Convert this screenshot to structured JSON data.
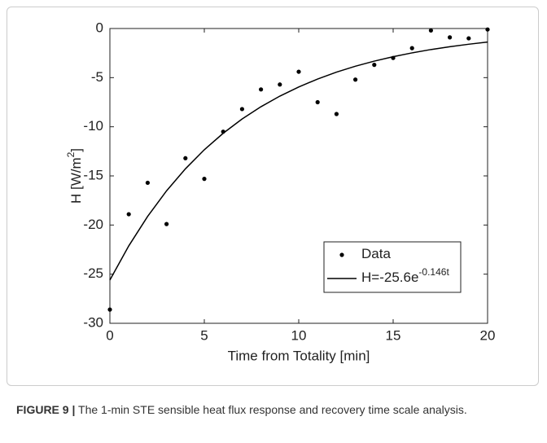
{
  "chart_data": {
    "type": "scatter",
    "xlabel": "Time from Totality [min]",
    "ylabel": {
      "text": "H [W/m",
      "sup": "2",
      "end": "]"
    },
    "xlim": [
      0,
      20
    ],
    "xticks": [
      0,
      5,
      10,
      15,
      20
    ],
    "ylim": [
      -30,
      0
    ],
    "yticks": [
      -30,
      -25,
      -20,
      -15,
      -10,
      -5,
      0
    ],
    "legend": "lower right",
    "series": [
      {
        "name": "Data",
        "kind": "points",
        "color": "#000000",
        "x": [
          0,
          1,
          2,
          3,
          4,
          5,
          6,
          7,
          8,
          9,
          10,
          11,
          12,
          13,
          14,
          15,
          16,
          17,
          18,
          19,
          20
        ],
        "values": [
          -28.6,
          -18.9,
          -15.7,
          -19.9,
          -13.2,
          -15.3,
          -10.5,
          -8.2,
          -6.2,
          -5.7,
          -4.4,
          -7.5,
          -8.7,
          -5.2,
          -3.7,
          -3.0,
          -2.0,
          -0.2,
          -0.9,
          -1.0,
          -0.1
        ]
      },
      {
        "name": "H=-25.6e",
        "name_sup": "-0.146t",
        "kind": "line",
        "color": "#000000",
        "x": [
          0,
          1,
          2,
          3,
          4,
          5,
          6,
          7,
          8,
          9,
          10,
          11,
          12,
          13,
          14,
          15,
          16,
          17,
          18,
          19,
          20
        ],
        "values": [
          -25.6,
          -22.12,
          -19.12,
          -16.52,
          -14.28,
          -12.34,
          -10.66,
          -9.21,
          -7.96,
          -6.88,
          -5.95,
          -5.14,
          -4.44,
          -3.84,
          -3.32,
          -2.87,
          -2.48,
          -2.14,
          -1.85,
          -1.6,
          -1.38
        ]
      }
    ]
  },
  "caption": {
    "label": "FIGURE 9 |",
    "text": "The 1-min STE sensible heat flux response and recovery time scale analysis."
  }
}
